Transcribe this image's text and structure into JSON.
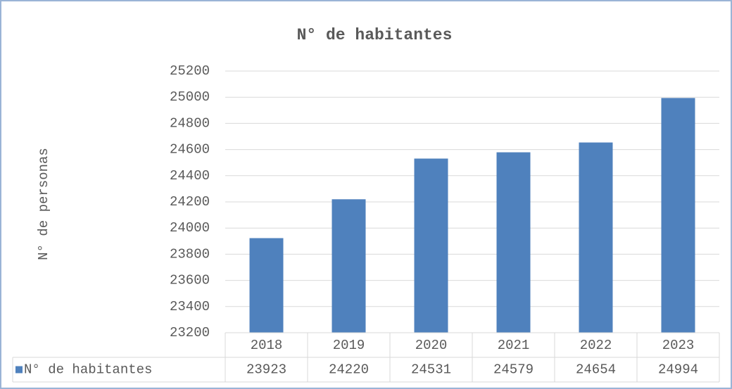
{
  "chart_data": {
    "type": "bar",
    "title": "N° de habitantes",
    "y_label": "N° de personas",
    "categories": [
      "2018",
      "2019",
      "2020",
      "2021",
      "2022",
      "2023"
    ],
    "series": [
      {
        "name": "N° de habitantes",
        "color": "#4f81bd",
        "values": [
          23923,
          24220,
          24531,
          24579,
          24654,
          24994
        ]
      }
    ],
    "ylim": [
      23200,
      25200
    ],
    "yticks": [
      23200,
      23400,
      23600,
      23800,
      24000,
      24200,
      24400,
      24600,
      24800,
      25000,
      25200
    ],
    "grid": true,
    "data_table": true
  }
}
